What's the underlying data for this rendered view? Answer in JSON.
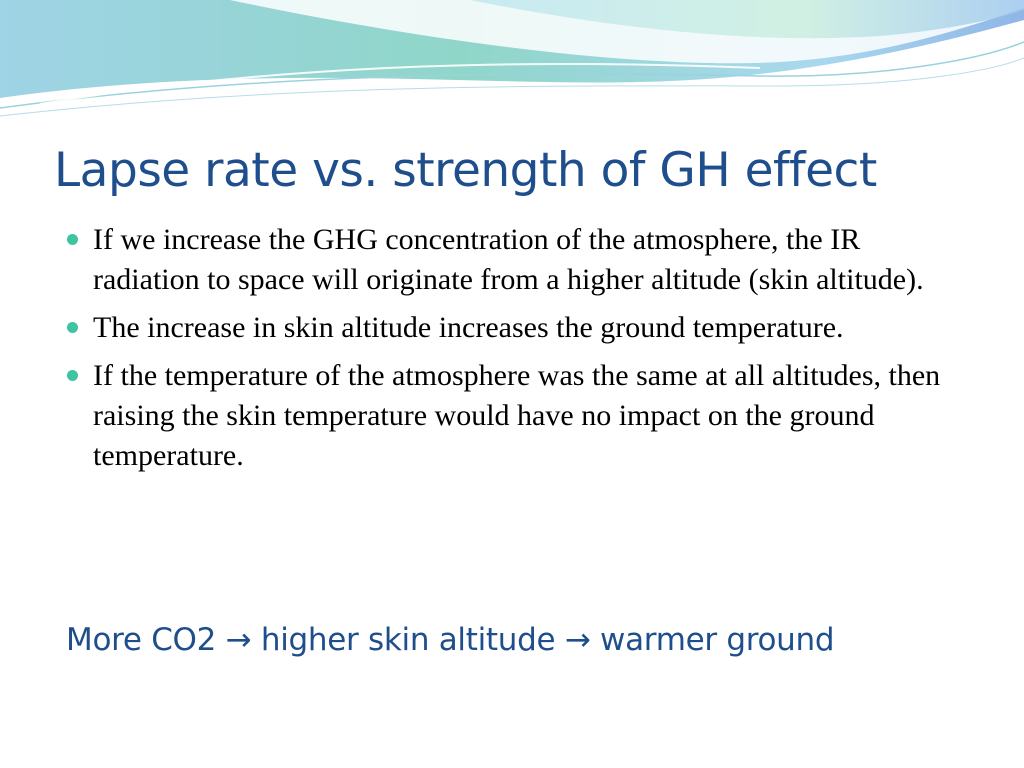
{
  "slide": {
    "title": "Lapse rate vs. strength of GH effect",
    "bullets": [
      "If we increase the GHG concentration of the atmosphere, the IR radiation to space will originate from a higher altitude (skin altitude).",
      "The increase in skin altitude increases the ground temperature.",
      "If the temperature of the atmosphere was the same at all altitudes, then raising the skin temperature would have no impact on the ground temperature."
    ],
    "conclusion": "More CO2 → higher skin altitude → warmer ground"
  },
  "colors": {
    "title": "#1f4e8c",
    "bullet_marker": "#3ec4a0",
    "banner_teal": "#8fd6c8",
    "banner_blue": "#8fb6e6"
  },
  "icons": {
    "bullet_marker": "filled-circle"
  }
}
